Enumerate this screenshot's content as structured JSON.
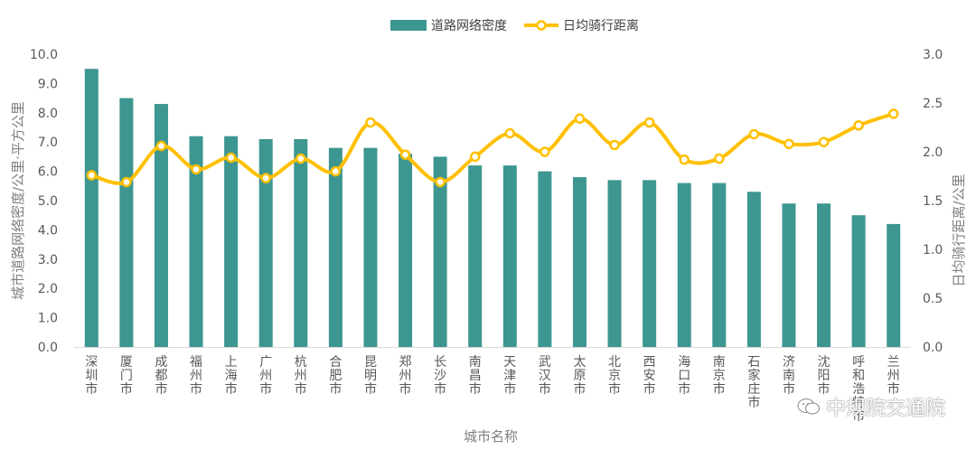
{
  "chart_data": {
    "type": "bar",
    "categories": [
      "深圳市",
      "厦门市",
      "成都市",
      "福州市",
      "上海市",
      "广州市",
      "杭州市",
      "合肥市",
      "昆明市",
      "郑州市",
      "长沙市",
      "南昌市",
      "天津市",
      "武汉市",
      "太原市",
      "北京市",
      "西安市",
      "海口市",
      "南京市",
      "石家庄市",
      "济南市",
      "沈阳市",
      "呼和浩特市",
      "兰州市"
    ],
    "series": [
      {
        "name": "道路网络密度",
        "type": "bar",
        "axis": "left",
        "color": "#3d9690",
        "values": [
          9.5,
          8.5,
          8.3,
          7.2,
          7.2,
          7.1,
          7.1,
          6.8,
          6.8,
          6.6,
          6.5,
          6.2,
          6.2,
          6.0,
          5.8,
          5.7,
          5.7,
          5.6,
          5.6,
          5.3,
          4.9,
          4.9,
          4.5,
          4.2
        ]
      },
      {
        "name": "日均骑行距离",
        "type": "line",
        "axis": "right",
        "color": "#ffc000",
        "values": [
          1.76,
          1.69,
          2.06,
          1.82,
          1.94,
          1.73,
          1.93,
          1.8,
          2.3,
          1.97,
          1.69,
          1.95,
          2.19,
          2.0,
          2.34,
          2.07,
          2.3,
          1.92,
          1.93,
          2.18,
          2.08,
          2.1,
          2.27,
          2.39
        ]
      }
    ],
    "xlabel": "城市名称",
    "ylabel": "城市道路网络密度/公里·平方公里",
    "y2label": "日均骑行距离/公里",
    "ylim": [
      0,
      10
    ],
    "y2lim": [
      0,
      3
    ],
    "yticks": [
      "0.0",
      "1.0",
      "2.0",
      "3.0",
      "4.0",
      "5.0",
      "6.0",
      "7.0",
      "8.0",
      "9.0",
      "10.0"
    ],
    "y2ticks": [
      "0.0",
      "0.5",
      "1.0",
      "1.5",
      "2.0",
      "2.5",
      "3.0"
    ],
    "legend": "top",
    "grid": false
  },
  "watermark": {
    "text": "中规院交通院"
  }
}
